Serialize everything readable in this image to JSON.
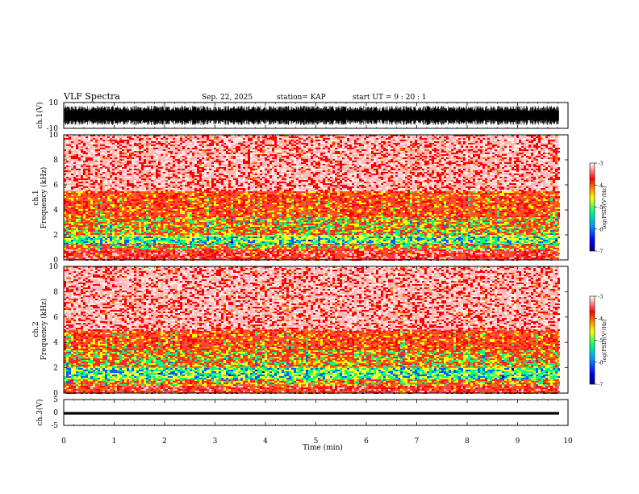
{
  "header": {
    "title": "VLF Spectra",
    "date": "Sep. 22, 2025",
    "station": "station= KAP",
    "start": "start  UT =   9 : 20 : 1"
  },
  "chart_data": [
    {
      "type": "line",
      "panel": "ch1-waveform",
      "ylabel": "ch.1(V)",
      "ylim": [
        -10,
        10
      ],
      "yticks": [
        "10",
        "-10"
      ],
      "trace_amplitude_range": [
        -8,
        8
      ],
      "x_end_min": 9.82
    },
    {
      "type": "heatmap",
      "panel": "ch1-spectrogram",
      "ylabel": "ch.1\nFrequency  (kHz)",
      "ylim": [
        0,
        10
      ],
      "yticks": [
        "0",
        "2",
        "4",
        "6",
        "8",
        "10"
      ],
      "x_end_min": 9.82,
      "colorbar": {
        "label": "log(PSD)(V²/Hz)",
        "range": [
          -7,
          -3
        ],
        "ticks": [
          "-3",
          "-4",
          "-5",
          "-6",
          "-7"
        ]
      },
      "bands": [
        {
          "from_khz": 0.0,
          "to_khz": 0.9,
          "level": -3.3
        },
        {
          "from_khz": 0.9,
          "to_khz": 1.3,
          "level": -4.3
        },
        {
          "from_khz": 1.3,
          "to_khz": 2.0,
          "level": -5.0
        },
        {
          "from_khz": 2.0,
          "to_khz": 3.5,
          "level": -4.3
        },
        {
          "from_khz": 3.5,
          "to_khz": 5.5,
          "level": -3.8
        },
        {
          "from_khz": 5.5,
          "to_khz": 10.0,
          "level": -3.2
        }
      ]
    },
    {
      "type": "heatmap",
      "panel": "ch2-spectrogram",
      "ylabel": "ch.2\nFrequency  (kHz)",
      "ylim": [
        0,
        10
      ],
      "yticks": [
        "0",
        "2",
        "4",
        "6",
        "8",
        "10"
      ],
      "x_end_min": 9.82,
      "colorbar": {
        "label": "log(PSD)(V²/Hz)",
        "range": [
          -7,
          -3
        ],
        "ticks": [
          "-3",
          "-4",
          "-5",
          "-6",
          "-7"
        ]
      },
      "bands": [
        {
          "from_khz": 0.0,
          "to_khz": 0.7,
          "level": -3.4
        },
        {
          "from_khz": 0.7,
          "to_khz": 1.1,
          "level": -4.2
        },
        {
          "from_khz": 1.1,
          "to_khz": 2.0,
          "level": -5.0
        },
        {
          "from_khz": 2.0,
          "to_khz": 3.5,
          "level": -4.3
        },
        {
          "from_khz": 3.5,
          "to_khz": 5.0,
          "level": -3.8
        },
        {
          "from_khz": 5.0,
          "to_khz": 10.0,
          "level": -3.2
        }
      ]
    },
    {
      "type": "line",
      "panel": "ch3-waveform",
      "ylabel": "ch.3(V)",
      "ylim": [
        -5,
        5
      ],
      "yticks": [
        "5",
        "0",
        "-5"
      ],
      "trace_amplitude_range": [
        -0.8,
        0.2
      ],
      "x_end_min": 9.82
    }
  ],
  "x_axis": {
    "label": "Time  (min)",
    "range": [
      0,
      10
    ],
    "ticks": [
      "0",
      "1",
      "2",
      "3",
      "4",
      "5",
      "6",
      "7",
      "8",
      "9",
      "10"
    ]
  },
  "colors": {
    "low": "#00007f",
    "mid_low": "#0060ff",
    "mid": "#00ff80",
    "mid_high": "#ffff00",
    "high": "#ff0000",
    "bg": "#ffffff"
  }
}
